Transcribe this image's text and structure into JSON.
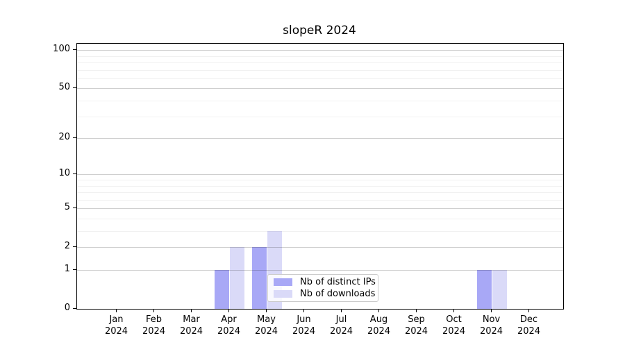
{
  "title": "slopeR 2024",
  "x_axis": {
    "months": [
      "Jan",
      "Feb",
      "Mar",
      "Apr",
      "May",
      "Jun",
      "Jul",
      "Aug",
      "Sep",
      "Oct",
      "Nov",
      "Dec"
    ],
    "year": "2024"
  },
  "chart_data": {
    "type": "bar",
    "title": "slopeR 2024",
    "categories": [
      "Jan 2024",
      "Feb 2024",
      "Mar 2024",
      "Apr 2024",
      "May 2024",
      "Jun 2024",
      "Jul 2024",
      "Aug 2024",
      "Sep 2024",
      "Oct 2024",
      "Nov 2024",
      "Dec 2024"
    ],
    "series": [
      {
        "name": "Nb of distinct IPs",
        "color": "#a8a8f6",
        "values": [
          0,
          0,
          0,
          1,
          2,
          0,
          0,
          0,
          0,
          0,
          1,
          0
        ]
      },
      {
        "name": "Nb of downloads",
        "color": "#dadaf8",
        "values": [
          0,
          0,
          0,
          2,
          3,
          0,
          0,
          0,
          0,
          0,
          1,
          0
        ]
      }
    ],
    "ylabel": "",
    "xlabel": "",
    "y_scale": "log10(1+value)",
    "y_ticks": [
      0,
      1,
      2,
      5,
      10,
      20,
      50,
      100
    ],
    "y_minor_gridlines": [
      3,
      4,
      6,
      7,
      8,
      9,
      30,
      40,
      60,
      70,
      80,
      90
    ],
    "ylim": [
      0,
      112
    ],
    "grid": "horizontal",
    "legend_position": "inside lower-center"
  },
  "colors": {
    "major_grid": "rgba(0,0,0,0.19)",
    "minor_grid": "rgba(0,0,0,0.055)",
    "spine": "#000000",
    "background": "#ffffff"
  }
}
